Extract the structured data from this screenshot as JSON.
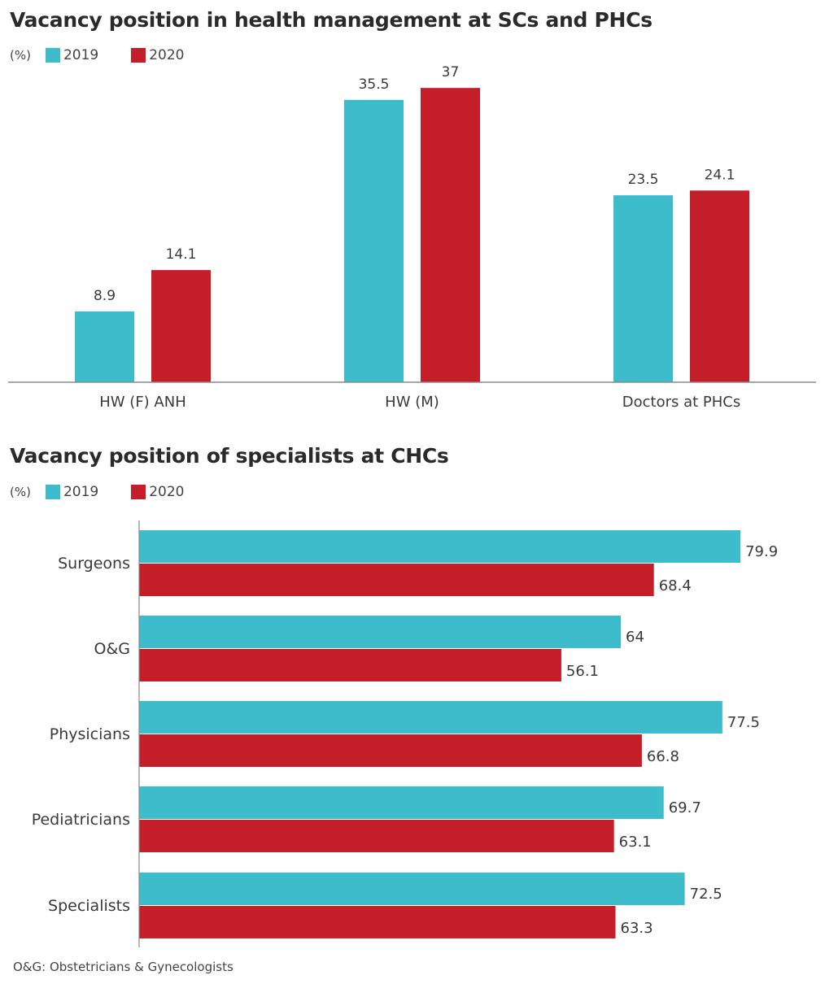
{
  "colors": {
    "series_2019": "#3dbccb",
    "series_2020": "#c41f28",
    "axis": "#888888"
  },
  "chart_data": [
    {
      "type": "bar",
      "orientation": "vertical",
      "title": "Vacancy position in health management at SCs and PHCs",
      "unit_label": "(%)",
      "categories": [
        "HW (F) ANH",
        "HW (M)",
        "Doctors at PHCs"
      ],
      "series": [
        {
          "name": "2019",
          "values": [
            8.9,
            35.5,
            23.5
          ],
          "labels": [
            "8.9",
            "35.5",
            "23.5"
          ]
        },
        {
          "name": "2020",
          "values": [
            14.1,
            37,
            24.1
          ],
          "labels": [
            "14.1",
            "37",
            "24.1"
          ]
        }
      ],
      "xlabel": "",
      "ylabel": "",
      "ylim": [
        0,
        38
      ],
      "grid": false,
      "legend": "top-left"
    },
    {
      "type": "bar",
      "orientation": "horizontal",
      "title": "Vacancy position of specialists at CHCs",
      "unit_label": "(%)",
      "categories": [
        "Surgeons",
        "O&G",
        "Physicians",
        "Pediatricians",
        "Specialists"
      ],
      "series": [
        {
          "name": "2019",
          "values": [
            79.9,
            64,
            77.5,
            69.7,
            72.5
          ],
          "labels": [
            "79.9",
            "64",
            "77.5",
            "69.7",
            "72.5"
          ]
        },
        {
          "name": "2020",
          "values": [
            68.4,
            56.1,
            66.8,
            63.1,
            63.3
          ],
          "labels": [
            "68.4",
            "56.1",
            "66.8",
            "63.1",
            "63.3"
          ]
        }
      ],
      "xlabel": "",
      "ylabel": "",
      "xlim": [
        0,
        85
      ],
      "grid": false,
      "legend": "top-left",
      "footnote": "O&G: Obstetricians & Gynecologists"
    }
  ]
}
